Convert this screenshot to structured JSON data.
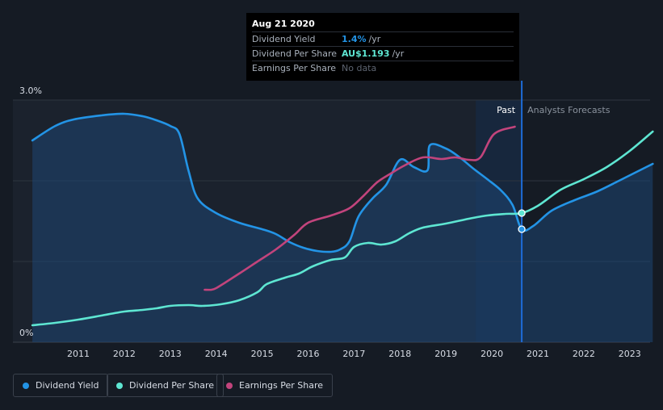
{
  "tooltip": {
    "date": "Aug 21 2020",
    "rows": [
      {
        "label": "Dividend Yield",
        "value": "1.4%",
        "unit": "/yr",
        "color": "#2394e6"
      },
      {
        "label": "Dividend Per Share",
        "value": "AU$1.193",
        "unit": "/yr",
        "color": "#5ee6d2"
      },
      {
        "label": "Earnings Per Share",
        "value": "No data",
        "unit": "",
        "color": "#5d6470"
      }
    ]
  },
  "regions": {
    "past": "Past",
    "forecast": "Analysts Forecasts"
  },
  "legend": [
    {
      "label": "Dividend Yield",
      "color": "#2394e6"
    },
    {
      "label": "Dividend Per Share",
      "color": "#5ee6d2"
    },
    {
      "label": "Earnings Per Share",
      "color": "#c2447c"
    }
  ],
  "chart_data": {
    "type": "line",
    "title": "",
    "y_tick_labels": [
      "3.0%",
      "0%"
    ],
    "ylim": [
      0,
      3.0
    ],
    "xlim": [
      2010.0,
      2023.5
    ],
    "x_tick_labels": [
      "2011",
      "2012",
      "2013",
      "2014",
      "2015",
      "2016",
      "2017",
      "2018",
      "2019",
      "2020",
      "2021",
      "2022",
      "2023"
    ],
    "past_forecast_split": 2020.65,
    "highlight_start": 2019.65,
    "series": [
      {
        "name": "Dividend Yield",
        "color": "#2394e6",
        "fill": true,
        "x": [
          2010.0,
          2010.5,
          2010.9,
          2011.5,
          2012.0,
          2012.4,
          2012.7,
          2013.0,
          2013.2,
          2013.4,
          2013.6,
          2014.0,
          2014.5,
          2015.0,
          2015.3,
          2015.6,
          2015.9,
          2016.2,
          2016.5,
          2016.7,
          2016.9,
          2017.1,
          2017.4,
          2017.7,
          2018.0,
          2018.3,
          2018.6,
          2018.65,
          2019.0,
          2019.3,
          2019.6,
          2019.9,
          2020.2,
          2020.45,
          2020.65,
          2020.9,
          2021.3,
          2021.8,
          2022.3,
          2022.8,
          2023.5
        ],
        "y": [
          2.5,
          2.68,
          2.76,
          2.81,
          2.83,
          2.8,
          2.75,
          2.68,
          2.58,
          2.12,
          1.78,
          1.6,
          1.48,
          1.4,
          1.34,
          1.24,
          1.17,
          1.13,
          1.12,
          1.15,
          1.25,
          1.56,
          1.78,
          1.95,
          2.26,
          2.17,
          2.13,
          2.44,
          2.4,
          2.29,
          2.15,
          2.02,
          1.88,
          1.7,
          1.4,
          1.44,
          1.63,
          1.76,
          1.87,
          2.01,
          2.21
        ]
      },
      {
        "name": "Dividend Per Share",
        "color": "#5ee6d2",
        "fill": false,
        "x": [
          2010.0,
          2010.5,
          2011.0,
          2011.5,
          2012.0,
          2012.4,
          2012.7,
          2013.0,
          2013.4,
          2013.7,
          2014.1,
          2014.5,
          2014.9,
          2015.1,
          2015.5,
          2015.8,
          2016.1,
          2016.5,
          2016.8,
          2017.0,
          2017.3,
          2017.6,
          2017.9,
          2018.2,
          2018.5,
          2019.0,
          2019.5,
          2019.9,
          2020.3,
          2020.65,
          2021.0,
          2021.5,
          2022.0,
          2022.5,
          2023.0,
          2023.5
        ],
        "y": [
          0.21,
          0.24,
          0.28,
          0.33,
          0.38,
          0.4,
          0.42,
          0.45,
          0.46,
          0.45,
          0.47,
          0.52,
          0.62,
          0.72,
          0.8,
          0.85,
          0.94,
          1.02,
          1.05,
          1.18,
          1.23,
          1.21,
          1.25,
          1.35,
          1.42,
          1.47,
          1.53,
          1.57,
          1.59,
          1.6,
          1.69,
          1.89,
          2.02,
          2.17,
          2.37,
          2.61
        ]
      },
      {
        "name": "Earnings Per Share",
        "color": "#c2447c",
        "fill": false,
        "x": [
          2013.75,
          2013.9,
          2014.0,
          2014.2,
          2014.5,
          2014.9,
          2015.3,
          2015.7,
          2016.0,
          2016.5,
          2016.9,
          2017.2,
          2017.5,
          2017.8,
          2018.1,
          2018.5,
          2018.9,
          2019.2,
          2019.5,
          2019.75,
          2020.05,
          2020.5
        ],
        "y": [
          0.65,
          0.65,
          0.67,
          0.74,
          0.85,
          1.0,
          1.15,
          1.33,
          1.48,
          1.57,
          1.66,
          1.81,
          1.98,
          2.09,
          2.19,
          2.29,
          2.27,
          2.29,
          2.26,
          2.29,
          2.58,
          2.67
        ]
      }
    ],
    "markers": [
      {
        "series": "Dividend Yield",
        "x": 2020.65,
        "y": 1.4
      },
      {
        "series": "Dividend Per Share",
        "x": 2020.65,
        "y": 1.6
      }
    ]
  }
}
